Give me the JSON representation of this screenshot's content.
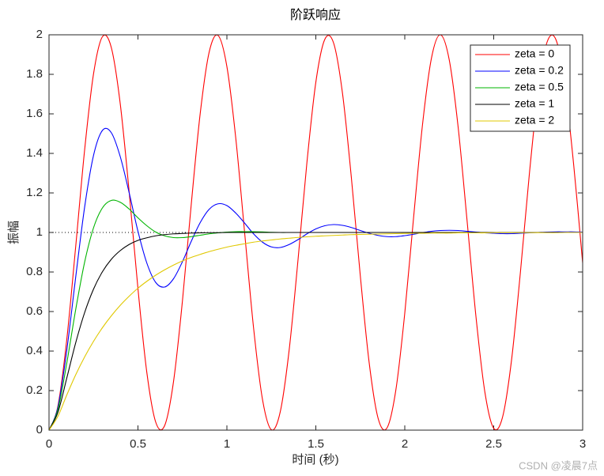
{
  "chart_data": {
    "type": "line",
    "title": "阶跃响应",
    "x_label": "时间 (秒)",
    "y_label": "振幅",
    "watermark": "CSDN @凌晨7点",
    "x": [
      0,
      0.05,
      0.1,
      0.15,
      0.2,
      0.25,
      0.3,
      0.35,
      0.4,
      0.45,
      0.5,
      0.55,
      0.6,
      0.65,
      0.7,
      0.75,
      0.8,
      0.85,
      0.9,
      0.95,
      1,
      1.05,
      1.1,
      1.15,
      1.2,
      1.25,
      1.3,
      1.35,
      1.4,
      1.45,
      1.5,
      1.55,
      1.6,
      1.65,
      1.7,
      1.75,
      1.8,
      1.85,
      1.9,
      1.95,
      2,
      2.05,
      2.1,
      2.15,
      2.2,
      2.25,
      2.3,
      2.35,
      2.4,
      2.45,
      2.5,
      2.55,
      2.6,
      2.65,
      2.7,
      2.75,
      2.8,
      2.85,
      2.9,
      2.95,
      3
    ],
    "series": [
      {
        "name": "zeta = 0",
        "color": "#ff0000",
        "values": [
          0,
          0.122,
          0.46,
          0.929,
          1.416,
          1.801,
          1.99,
          1.936,
          1.654,
          1.211,
          0.716,
          0.291,
          0.04,
          0.023,
          0.246,
          0.653,
          1.146,
          1.602,
          1.911,
          1.997,
          1.839,
          1.476,
          0.996,
          0.517,
          0.156,
          0.002,
          0.093,
          0.405,
          0.863,
          1.355,
          1.76,
          1.976,
          1.958,
          1.703,
          1.275,
          0.781,
          0.34,
          0.06,
          0.011,
          0.204,
          0.592,
          1.08,
          1.548,
          1.882,
          2,
          1.873,
          1.533,
          1.062,
          0.576,
          0.194,
          0.009,
          0.067,
          0.353,
          0.798,
          1.292,
          1.715,
          1.963,
          1.975,
          1.748,
          1.338,
          0.846
        ]
      },
      {
        "name": "zeta = 0.2",
        "color": "#0000ff",
        "values": [
          0,
          0.115,
          0.405,
          0.774,
          1.127,
          1.389,
          1.516,
          1.505,
          1.385,
          1.203,
          1.006,
          0.845,
          0.747,
          0.724,
          0.766,
          0.852,
          0.956,
          1.05,
          1.117,
          1.145,
          1.136,
          1.098,
          1.047,
          0.993,
          0.951,
          0.927,
          0.924,
          0.939,
          0.964,
          0.993,
          1.018,
          1.034,
          1.04,
          1.036,
          1.025,
          1.01,
          0.996,
          0.985,
          0.979,
          0.979,
          0.984,
          0.991,
          0.999,
          1.006,
          1.01,
          1.011,
          1.01,
          1.006,
          1.002,
          0.998,
          0.996,
          0.994,
          0.994,
          0.996,
          0.998,
          1,
          1.002,
          1.003,
          1.003,
          1.003,
          1.002
        ]
      },
      {
        "name": "zeta = 0.5",
        "color": "#00b400",
        "values": [
          0,
          0.104,
          0.34,
          0.61,
          0.849,
          1.023,
          1.124,
          1.162,
          1.153,
          1.119,
          1.074,
          1.034,
          1.002,
          0.983,
          0.974,
          0.974,
          0.979,
          0.986,
          0.993,
          0.998,
          1.002,
          1.004,
          1.004,
          1.004,
          1.003,
          1.001,
          1,
          1,
          1,
          1,
          1,
          1,
          1,
          1,
          1,
          1,
          1,
          1,
          1,
          1,
          1,
          1,
          1,
          1,
          1,
          1,
          1,
          1,
          1,
          1,
          1,
          1,
          1,
          1,
          1,
          1,
          1,
          1,
          1,
          1,
          1
        ]
      },
      {
        "name": "zeta = 1",
        "color": "#000000",
        "values": [
          0,
          0.09,
          0.264,
          0.442,
          0.594,
          0.713,
          0.801,
          0.864,
          0.908,
          0.939,
          0.96,
          0.973,
          0.983,
          0.989,
          0.993,
          0.995,
          0.997,
          0.998,
          0.999,
          0.999,
          1,
          1,
          1,
          1,
          1,
          1,
          1,
          1,
          1,
          1,
          1,
          1,
          1,
          1,
          1,
          1,
          1,
          1,
          1,
          1,
          1,
          1,
          1,
          1,
          1,
          1,
          1,
          1,
          1,
          1,
          1,
          1,
          1,
          1,
          1,
          1,
          1,
          1,
          1,
          1,
          1
        ]
      },
      {
        "name": "zeta = 2",
        "color": "#e0c800",
        "values": [
          0,
          0.07,
          0.178,
          0.28,
          0.37,
          0.449,
          0.518,
          0.578,
          0.631,
          0.677,
          0.718,
          0.753,
          0.784,
          0.811,
          0.835,
          0.856,
          0.874,
          0.889,
          0.903,
          0.915,
          0.926,
          0.935,
          0.943,
          0.951,
          0.957,
          0.962,
          0.967,
          0.971,
          0.975,
          0.978,
          0.981,
          0.983,
          0.985,
          0.987,
          0.989,
          0.99,
          0.991,
          0.992,
          0.993,
          0.994,
          0.995,
          0.996,
          0.996,
          0.997,
          0.997,
          0.997,
          0.998,
          0.998,
          0.998,
          0.998,
          0.999,
          0.999,
          0.999,
          0.999,
          0.999,
          0.999,
          0.999,
          0.999,
          1,
          1,
          1
        ]
      }
    ],
    "reference": 1,
    "xlim": [
      0,
      3
    ],
    "ylim": [
      0,
      2
    ],
    "xticks": [
      0,
      0.5,
      1,
      1.5,
      2,
      2.5,
      3
    ],
    "yticks": [
      0,
      0.2,
      0.4,
      0.6,
      0.8,
      1,
      1.2,
      1.4,
      1.6,
      1.8,
      2
    ],
    "grid": false,
    "legend": "northeast"
  }
}
